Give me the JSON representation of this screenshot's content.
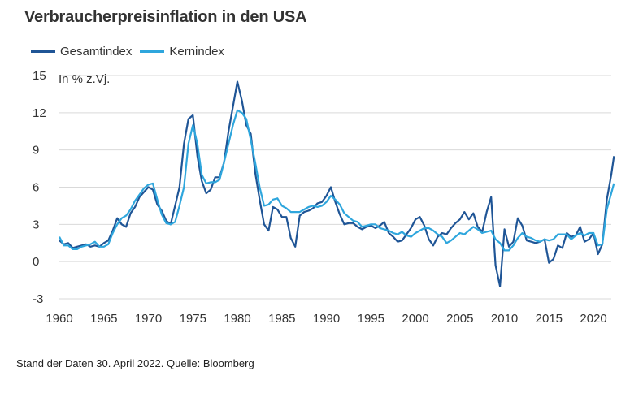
{
  "chart_data": {
    "type": "line",
    "title": "Verbraucherpreisinflation in den USA",
    "unit_label": "In % z.Vj.",
    "xlabel": "",
    "ylabel": "",
    "xlim": [
      1960,
      2022
    ],
    "ylim": [
      -3,
      15
    ],
    "x_ticks": [
      1960,
      1965,
      1970,
      1975,
      1980,
      1985,
      1990,
      1995,
      2000,
      2005,
      2010,
      2015,
      2020
    ],
    "y_ticks": [
      -3,
      0,
      3,
      6,
      9,
      12,
      15
    ],
    "grid": "horizontal",
    "legend_position": "top-left",
    "series": [
      {
        "name": "Gesamtindex",
        "color": "#1f5596",
        "x": [
          1960.0,
          1960.5,
          1961.0,
          1961.5,
          1962.0,
          1962.5,
          1963.0,
          1963.5,
          1964.0,
          1964.5,
          1965.0,
          1965.5,
          1966.0,
          1966.5,
          1967.0,
          1967.5,
          1968.0,
          1968.5,
          1969.0,
          1969.5,
          1970.0,
          1970.5,
          1971.0,
          1971.5,
          1972.0,
          1972.5,
          1973.0,
          1973.5,
          1974.0,
          1974.5,
          1975.0,
          1975.5,
          1976.0,
          1976.5,
          1977.0,
          1977.5,
          1978.0,
          1978.5,
          1979.0,
          1979.5,
          1980.0,
          1980.5,
          1981.0,
          1981.5,
          1982.0,
          1982.5,
          1983.0,
          1983.5,
          1984.0,
          1984.5,
          1985.0,
          1985.5,
          1986.0,
          1986.5,
          1987.0,
          1987.5,
          1988.0,
          1988.5,
          1989.0,
          1989.5,
          1990.0,
          1990.5,
          1991.0,
          1991.5,
          1992.0,
          1992.5,
          1993.0,
          1993.5,
          1994.0,
          1994.5,
          1995.0,
          1995.5,
          1996.0,
          1996.5,
          1997.0,
          1997.5,
          1998.0,
          1998.5,
          1999.0,
          1999.5,
          2000.0,
          2000.5,
          2001.0,
          2001.5,
          2002.0,
          2002.5,
          2003.0,
          2003.5,
          2004.0,
          2004.5,
          2005.0,
          2005.5,
          2006.0,
          2006.5,
          2007.0,
          2007.5,
          2008.0,
          2008.5,
          2009.0,
          2009.5,
          2010.0,
          2010.5,
          2011.0,
          2011.5,
          2012.0,
          2012.5,
          2013.0,
          2013.5,
          2014.0,
          2014.5,
          2015.0,
          2015.5,
          2016.0,
          2016.5,
          2017.0,
          2017.5,
          2018.0,
          2018.5,
          2019.0,
          2019.5,
          2020.0,
          2020.5,
          2021.0,
          2021.5,
          2022.0,
          2022.3
        ],
        "values": [
          1.7,
          1.4,
          1.5,
          1.1,
          1.2,
          1.3,
          1.4,
          1.2,
          1.3,
          1.2,
          1.5,
          1.7,
          2.5,
          3.5,
          3.0,
          2.8,
          3.9,
          4.4,
          5.2,
          5.6,
          6.0,
          5.8,
          4.6,
          4.1,
          3.3,
          3.0,
          4.5,
          6.0,
          9.5,
          11.5,
          11.8,
          8.5,
          6.5,
          5.5,
          5.8,
          6.8,
          6.8,
          8.0,
          10.5,
          12.5,
          14.5,
          13.0,
          11.0,
          10.3,
          7.2,
          5.0,
          3.0,
          2.5,
          4.4,
          4.2,
          3.6,
          3.6,
          1.9,
          1.2,
          3.7,
          4.0,
          4.1,
          4.3,
          4.7,
          4.8,
          5.3,
          6.0,
          4.8,
          3.8,
          3.0,
          3.1,
          3.1,
          2.8,
          2.6,
          2.8,
          2.9,
          2.7,
          2.9,
          3.2,
          2.3,
          2.0,
          1.6,
          1.7,
          2.2,
          2.7,
          3.4,
          3.6,
          2.9,
          1.8,
          1.3,
          2.0,
          2.3,
          2.2,
          2.7,
          3.1,
          3.4,
          4.0,
          3.4,
          3.9,
          2.8,
          2.4,
          4.0,
          5.2,
          -0.3,
          -2.0,
          2.6,
          1.2,
          1.6,
          3.5,
          2.9,
          1.7,
          1.6,
          1.5,
          1.6,
          1.8,
          -0.1,
          0.2,
          1.3,
          1.1,
          2.3,
          2.0,
          2.1,
          2.8,
          1.6,
          1.8,
          2.3,
          0.6,
          1.4,
          5.0,
          7.0,
          8.5
        ]
      },
      {
        "name": "Kernindex",
        "color": "#2ea6dd",
        "x": [
          1960.0,
          1960.5,
          1961.0,
          1961.5,
          1962.0,
          1962.5,
          1963.0,
          1963.5,
          1964.0,
          1964.5,
          1965.0,
          1965.5,
          1966.0,
          1966.5,
          1967.0,
          1967.5,
          1968.0,
          1968.5,
          1969.0,
          1969.5,
          1970.0,
          1970.5,
          1971.0,
          1971.5,
          1972.0,
          1972.5,
          1973.0,
          1973.5,
          1974.0,
          1974.5,
          1975.0,
          1975.5,
          1976.0,
          1976.5,
          1977.0,
          1977.5,
          1978.0,
          1978.5,
          1979.0,
          1979.5,
          1980.0,
          1980.5,
          1981.0,
          1981.5,
          1982.0,
          1982.5,
          1983.0,
          1983.5,
          1984.0,
          1984.5,
          1985.0,
          1985.5,
          1986.0,
          1986.5,
          1987.0,
          1987.5,
          1988.0,
          1988.5,
          1989.0,
          1989.5,
          1990.0,
          1990.5,
          1991.0,
          1991.5,
          1992.0,
          1992.5,
          1993.0,
          1993.5,
          1994.0,
          1994.5,
          1995.0,
          1995.5,
          1996.0,
          1996.5,
          1997.0,
          1997.5,
          1998.0,
          1998.5,
          1999.0,
          1999.5,
          2000.0,
          2000.5,
          2001.0,
          2001.5,
          2002.0,
          2002.5,
          2003.0,
          2003.5,
          2004.0,
          2004.5,
          2005.0,
          2005.5,
          2006.0,
          2006.5,
          2007.0,
          2007.5,
          2008.0,
          2008.5,
          2009.0,
          2009.5,
          2010.0,
          2010.5,
          2011.0,
          2011.5,
          2012.0,
          2012.5,
          2013.0,
          2013.5,
          2014.0,
          2014.5,
          2015.0,
          2015.5,
          2016.0,
          2016.5,
          2017.0,
          2017.5,
          2018.0,
          2018.5,
          2019.0,
          2019.5,
          2020.0,
          2020.5,
          2021.0,
          2021.5,
          2022.0,
          2022.3
        ],
        "values": [
          2.0,
          1.3,
          1.3,
          1.0,
          1.0,
          1.2,
          1.3,
          1.4,
          1.6,
          1.2,
          1.2,
          1.4,
          2.3,
          3.0,
          3.5,
          3.7,
          4.2,
          4.9,
          5.4,
          5.9,
          6.2,
          6.3,
          5.0,
          3.8,
          3.1,
          3.0,
          3.2,
          4.5,
          6.0,
          9.5,
          11.0,
          9.5,
          7.0,
          6.3,
          6.4,
          6.4,
          6.6,
          8.0,
          9.5,
          11.0,
          12.2,
          12.0,
          11.5,
          9.8,
          8.0,
          6.0,
          4.5,
          4.6,
          5.0,
          5.1,
          4.5,
          4.3,
          4.0,
          4.0,
          4.0,
          4.2,
          4.4,
          4.5,
          4.4,
          4.5,
          4.8,
          5.3,
          5.0,
          4.6,
          3.9,
          3.6,
          3.3,
          3.2,
          2.8,
          2.9,
          3.0,
          3.0,
          2.7,
          2.6,
          2.5,
          2.3,
          2.2,
          2.4,
          2.1,
          2.0,
          2.3,
          2.5,
          2.7,
          2.7,
          2.5,
          2.2,
          2.0,
          1.5,
          1.7,
          2.0,
          2.3,
          2.2,
          2.5,
          2.8,
          2.6,
          2.3,
          2.4,
          2.5,
          1.8,
          1.5,
          0.9,
          0.9,
          1.3,
          1.9,
          2.3,
          2.0,
          1.9,
          1.7,
          1.6,
          1.8,
          1.7,
          1.8,
          2.2,
          2.2,
          2.2,
          1.8,
          2.1,
          2.3,
          2.1,
          2.3,
          2.3,
          1.3,
          1.4,
          4.2,
          5.5,
          6.3
        ]
      }
    ]
  },
  "footnote": "Stand der Daten 30. April 2022. Quelle: Bloomberg"
}
